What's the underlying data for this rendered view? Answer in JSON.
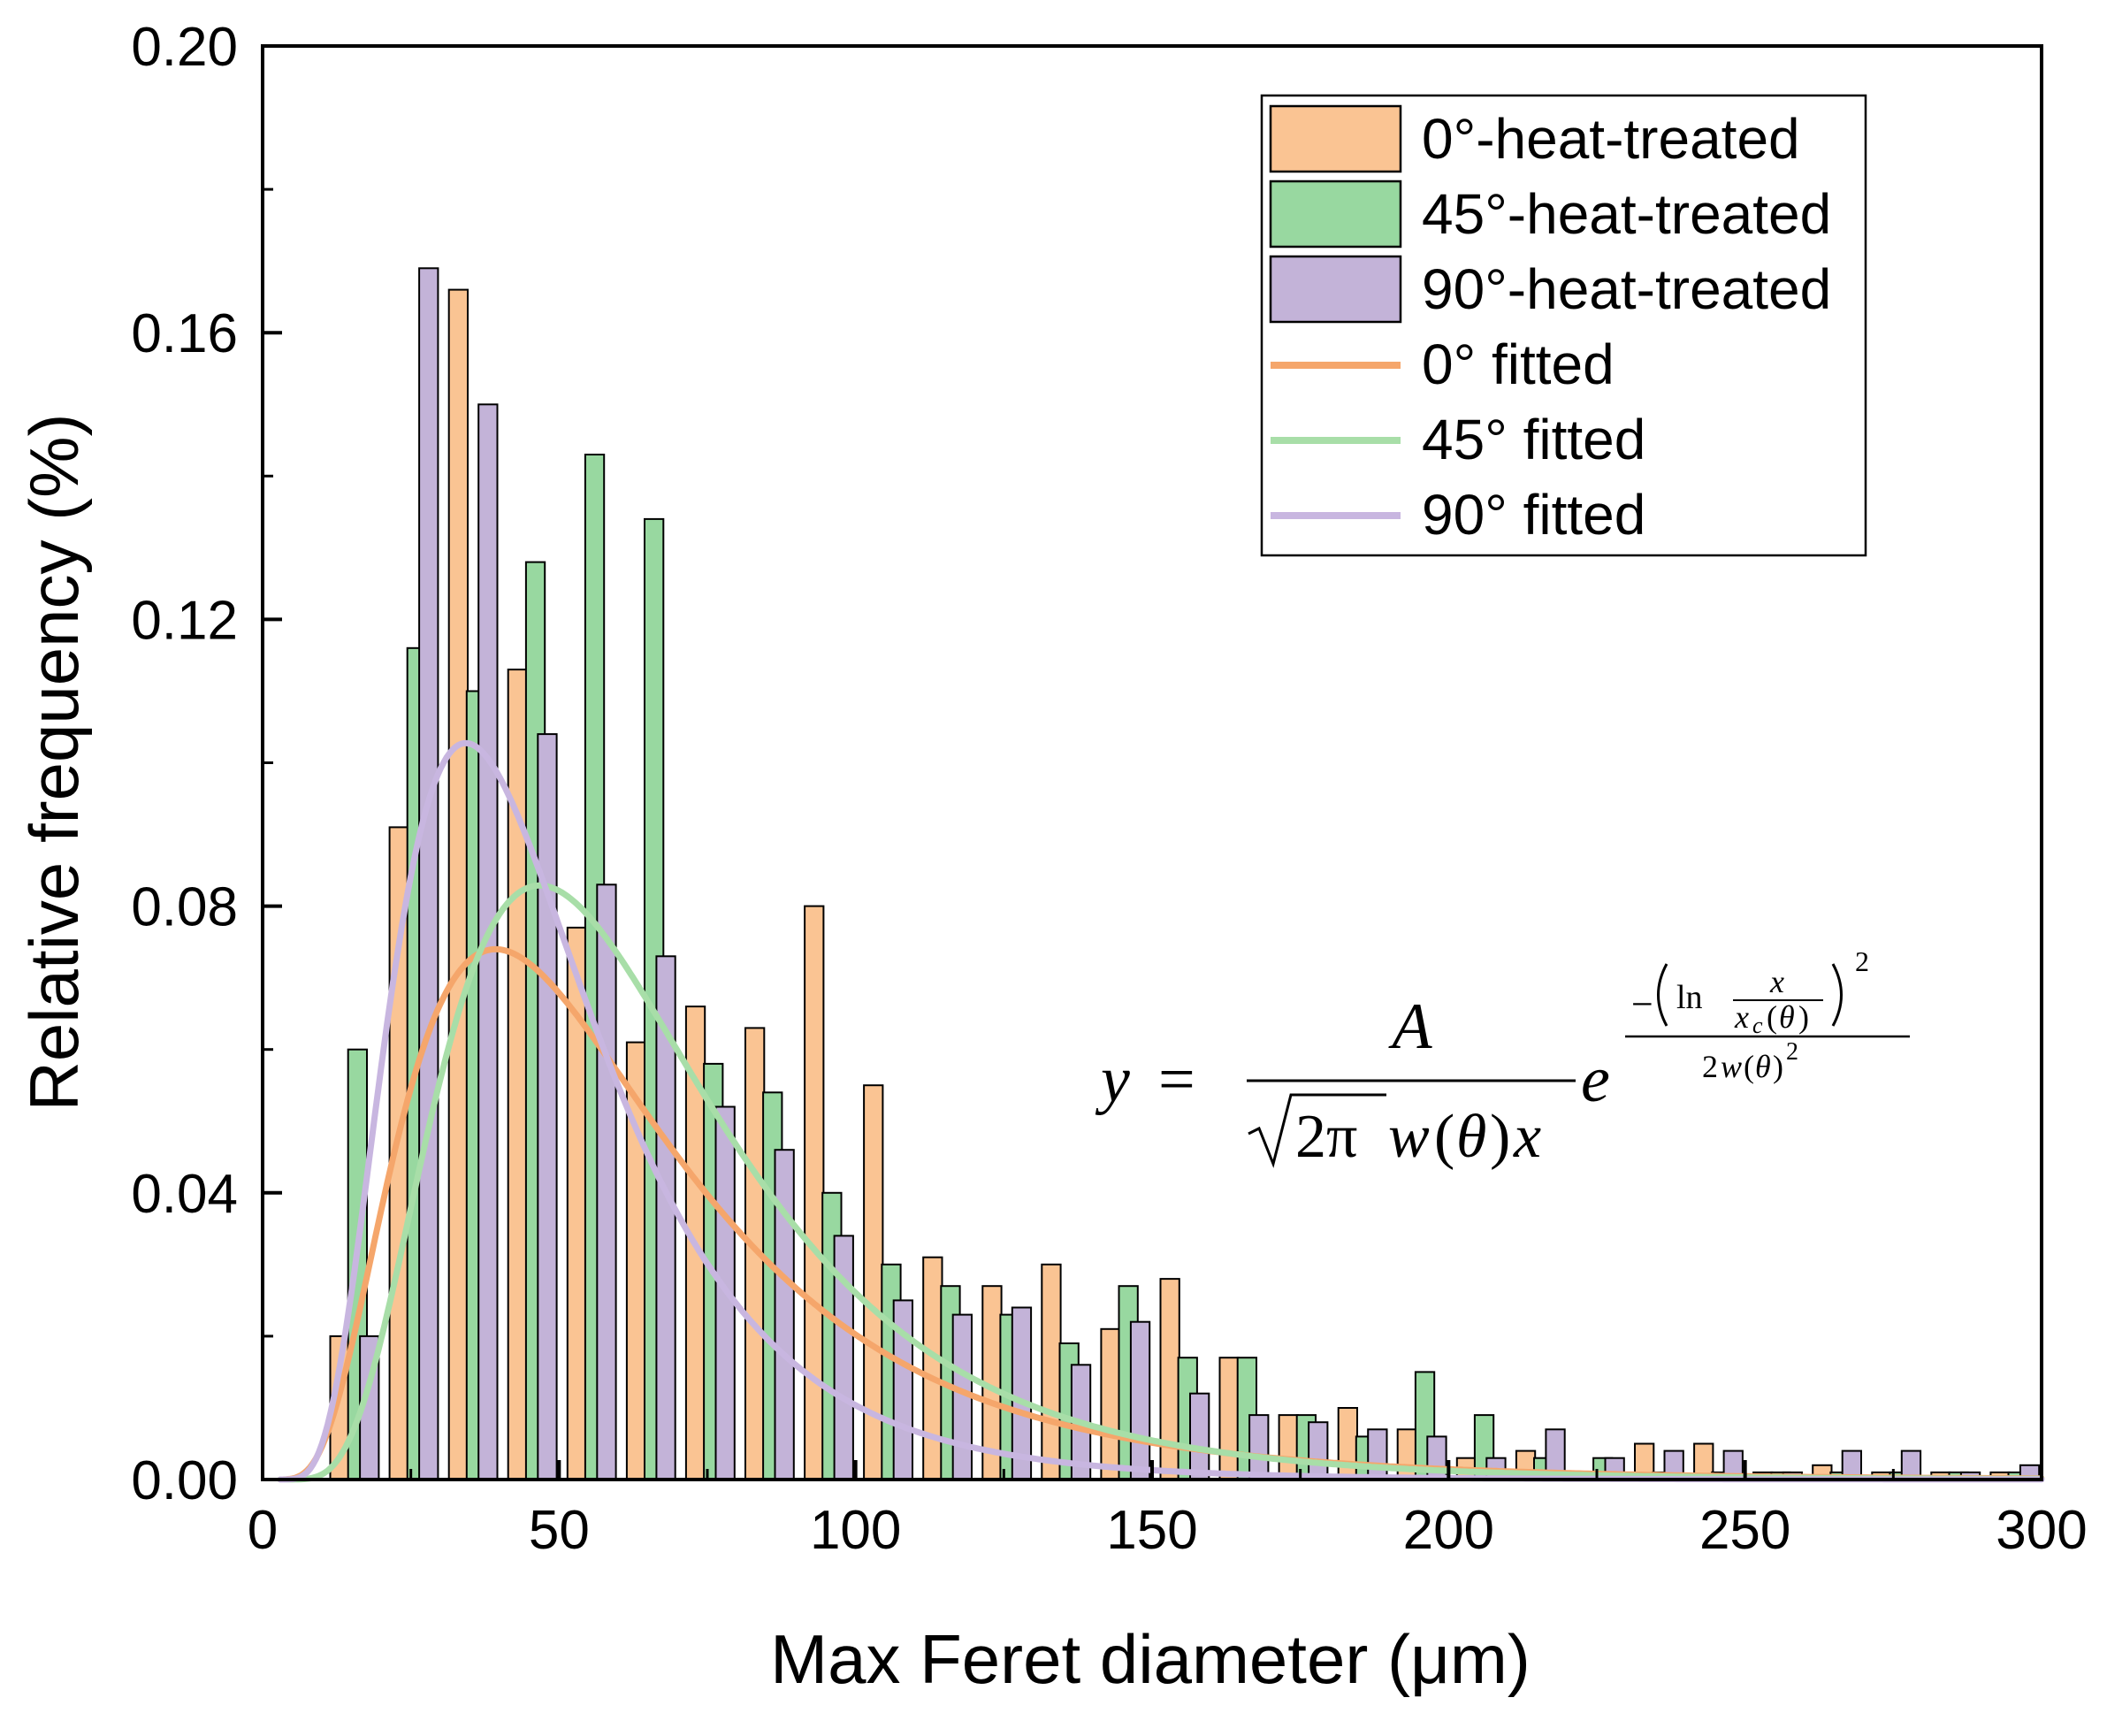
{
  "chart_data": {
    "type": "bar",
    "title": "",
    "xlabel": "Max Feret diameter (μm)",
    "ylabel": "Relative frequency (%)",
    "xlim": [
      0,
      300
    ],
    "ylim": [
      0,
      0.2
    ],
    "xticks": [
      0,
      50,
      100,
      150,
      200,
      250,
      300
    ],
    "xtick_labels": [
      "0",
      "50",
      "100",
      "150",
      "200",
      "250",
      "300"
    ],
    "yticks": [
      0,
      0.04,
      0.08,
      0.12,
      0.16,
      0.2
    ],
    "ytick_labels": [
      "0.00",
      "0.04",
      "0.08",
      "0.12",
      "0.16",
      "0.20"
    ],
    "grid": false,
    "legend_position": "top-right",
    "bin_width": 10,
    "series": [
      {
        "name": "0°-heat-treated",
        "kind": "bar",
        "color": "#FAC493",
        "bin_centers": [
          13,
          23,
          33,
          43,
          53,
          63,
          73,
          83,
          93,
          103,
          113,
          123,
          133,
          143,
          153,
          163,
          173,
          183,
          193,
          203,
          213,
          223,
          233,
          243,
          253,
          263,
          273,
          283,
          293
        ],
        "values": [
          0.02,
          0.091,
          0.166,
          0.113,
          0.077,
          0.061,
          0.066,
          0.063,
          0.08,
          0.055,
          0.031,
          0.027,
          0.03,
          0.021,
          0.028,
          0.017,
          0.009,
          0.01,
          0.007,
          0.003,
          0.004,
          0.001,
          0.005,
          0.005,
          0.001,
          0.002,
          0.001,
          0.001,
          0.001
        ]
      },
      {
        "name": "45°-heat-treated",
        "kind": "bar",
        "color": "#98D8A0",
        "bin_centers": [
          16,
          26,
          36,
          46,
          56,
          66,
          76,
          86,
          96,
          106,
          116,
          126,
          136,
          146,
          156,
          166,
          176,
          186,
          196,
          206,
          216,
          226,
          236,
          246,
          256,
          266,
          276,
          286,
          296
        ],
        "values": [
          0.06,
          0.116,
          0.11,
          0.128,
          0.143,
          0.134,
          0.058,
          0.054,
          0.04,
          0.03,
          0.027,
          0.023,
          0.019,
          0.027,
          0.017,
          0.017,
          0.009,
          0.006,
          0.015,
          0.009,
          0.003,
          0.003,
          0.001,
          0.001,
          0.001,
          0.001,
          0.001,
          0.001,
          0.001
        ]
      },
      {
        "name": "90°-heat-treated",
        "kind": "bar",
        "color": "#C3B3D8",
        "bin_centers": [
          18,
          28,
          38,
          48,
          58,
          68,
          78,
          88,
          98,
          108,
          118,
          128,
          138,
          148,
          158,
          168,
          178,
          188,
          198,
          208,
          218,
          228,
          238,
          248,
          258,
          268,
          278,
          288,
          298
        ],
        "values": [
          0.02,
          0.169,
          0.15,
          0.104,
          0.083,
          0.073,
          0.052,
          0.046,
          0.034,
          0.025,
          0.023,
          0.024,
          0.016,
          0.022,
          0.012,
          0.009,
          0.008,
          0.007,
          0.006,
          0.003,
          0.007,
          0.003,
          0.004,
          0.004,
          0.001,
          0.004,
          0.004,
          0.001,
          0.002
        ]
      },
      {
        "name": "0° fitted",
        "kind": "line",
        "color": "#F5A66B",
        "A": 5.0,
        "xc": 55.0,
        "w": 0.58
      },
      {
        "name": "45° fitted",
        "kind": "line",
        "color": "#A8DEA8",
        "A": 5.5,
        "xc": 60.0,
        "w": 0.5
      },
      {
        "name": "90° fitted",
        "kind": "line",
        "color": "#C8B6E0",
        "A": 5.0,
        "xc": 44.0,
        "w": 0.5
      }
    ],
    "equation": {
      "lhs": "y",
      "eq": "=",
      "numerator": "A",
      "sqrt_arg": "2π",
      "w": "w",
      "theta": "θ",
      "x": "x",
      "lparen": "(",
      "rparen": ")",
      "e": "e",
      "minus": "−",
      "ln": "ln",
      "xc": "x",
      "xc_sub": "c",
      "two": "2",
      "sq": "2"
    }
  }
}
